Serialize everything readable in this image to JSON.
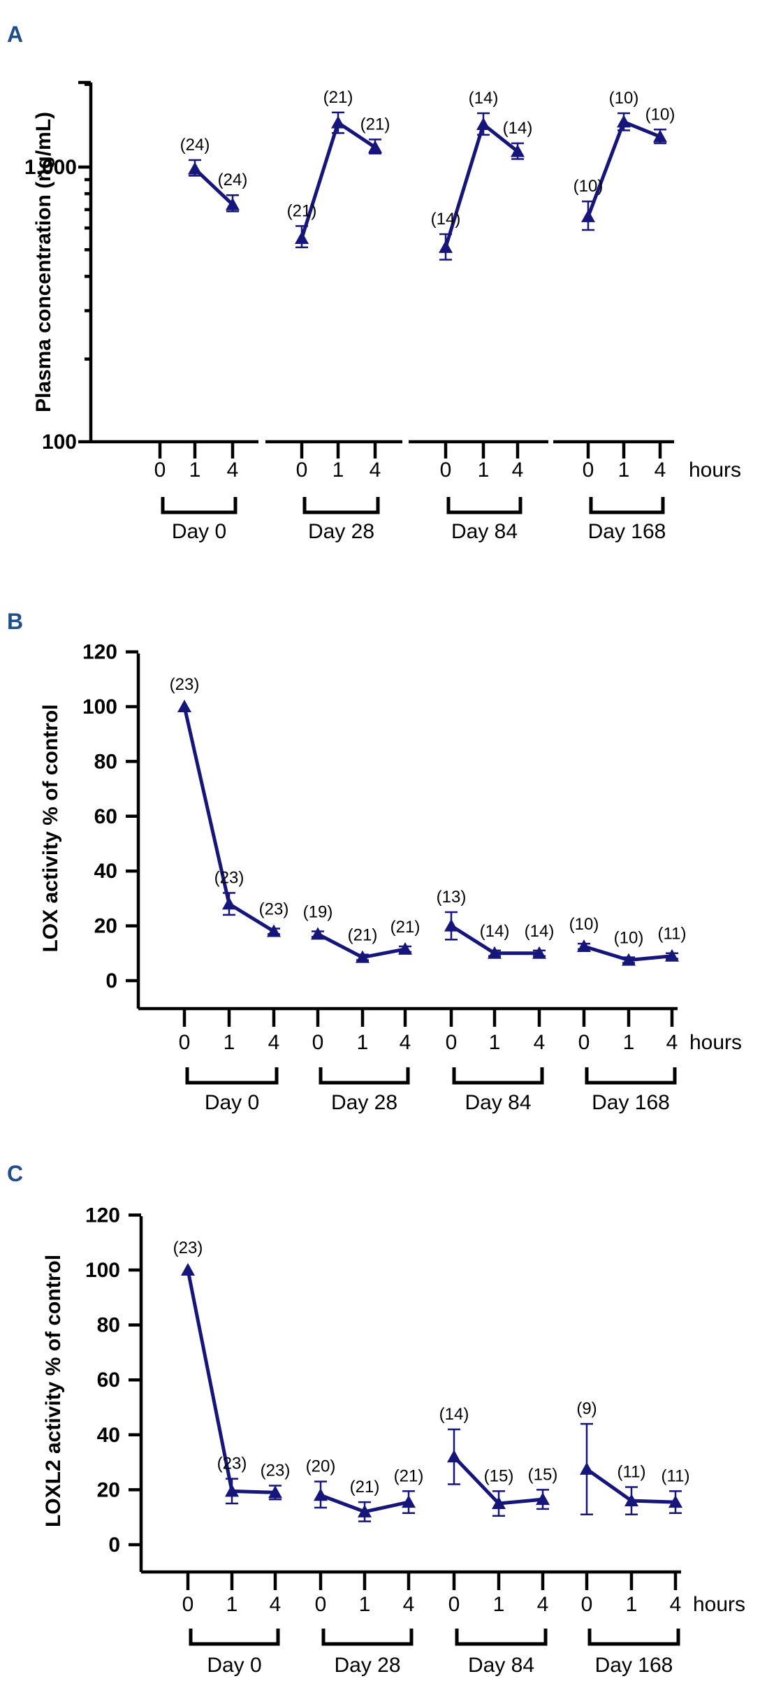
{
  "chart_data": [
    {
      "panel": "A",
      "type": "line",
      "yscale": "log",
      "ylabel": "Plasma concentration (ng/mL)",
      "ylim": [
        100,
        2000
      ],
      "yticks": [
        {
          "v": 100,
          "label": "100"
        },
        {
          "v": 1000,
          "label": "1,000"
        }
      ],
      "x_unit_label": "hours",
      "groups": [
        {
          "day": "Day 0",
          "ticks": [
            "0",
            "1",
            "4"
          ],
          "points": [
            {
              "t": "1",
              "y": 985,
              "err": [
                930,
                1060
              ],
              "n": "(24)"
            },
            {
              "t": "4",
              "y": 730,
              "err": [
                690,
                790
              ],
              "n": "(24)"
            }
          ]
        },
        {
          "day": "Day 28",
          "ticks": [
            "0",
            "1",
            "4"
          ],
          "points": [
            {
              "t": "0",
              "y": 550,
              "err": [
                510,
                610
              ],
              "n": "(21)"
            },
            {
              "t": "1",
              "y": 1450,
              "err": [
                1330,
                1580
              ],
              "n": "(21)"
            },
            {
              "t": "4",
              "y": 1180,
              "err": [
                1120,
                1260
              ],
              "n": "(21)"
            }
          ]
        },
        {
          "day": "Day 84",
          "ticks": [
            "0",
            "1",
            "4"
          ],
          "points": [
            {
              "t": "0",
              "y": 510,
              "err": [
                460,
                570
              ],
              "n": "(14)"
            },
            {
              "t": "1",
              "y": 1430,
              "err": [
                1310,
                1570
              ],
              "n": "(14)"
            },
            {
              "t": "4",
              "y": 1140,
              "err": [
                1070,
                1220
              ],
              "n": "(14)"
            }
          ]
        },
        {
          "day": "Day 168",
          "ticks": [
            "0",
            "1",
            "4"
          ],
          "points": [
            {
              "t": "0",
              "y": 660,
              "err": [
                590,
                750
              ],
              "n": "(10)"
            },
            {
              "t": "1",
              "y": 1460,
              "err": [
                1360,
                1570
              ],
              "n": "(10)"
            },
            {
              "t": "4",
              "y": 1290,
              "err": [
                1220,
                1370
              ],
              "n": "(10)"
            }
          ]
        }
      ]
    },
    {
      "panel": "B",
      "type": "line",
      "yscale": "linear",
      "ylabel": "LOX activity % of control",
      "ylim": [
        -10,
        120
      ],
      "yticks": [
        {
          "v": 0,
          "label": "0"
        },
        {
          "v": 20,
          "label": "20"
        },
        {
          "v": 40,
          "label": "40"
        },
        {
          "v": 60,
          "label": "60"
        },
        {
          "v": 80,
          "label": "80"
        },
        {
          "v": 100,
          "label": "100"
        },
        {
          "v": 120,
          "label": "120"
        }
      ],
      "x_unit_label": "hours",
      "groups": [
        {
          "day": "Day 0",
          "ticks": [
            "0",
            "1",
            "4"
          ],
          "points": [
            {
              "t": "0",
              "y": 100,
              "err": [
                100,
                100
              ],
              "n": "(23)"
            },
            {
              "t": "1",
              "y": 28,
              "err": [
                24,
                32
              ],
              "n": "(23)"
            },
            {
              "t": "4",
              "y": 18,
              "err": [
                17,
                19
              ],
              "n": "(23)"
            }
          ]
        },
        {
          "day": "Day 28",
          "ticks": [
            "0",
            "1",
            "4"
          ],
          "points": [
            {
              "t": "0",
              "y": 17,
              "err": [
                16,
                18
              ],
              "n": "(19)"
            },
            {
              "t": "1",
              "y": 8.5,
              "err": [
                7.5,
                9.5
              ],
              "n": "(21)"
            },
            {
              "t": "4",
              "y": 11.5,
              "err": [
                10.5,
                12.5
              ],
              "n": "(21)"
            }
          ]
        },
        {
          "day": "Day 84",
          "ticks": [
            "0",
            "1",
            "4"
          ],
          "points": [
            {
              "t": "0",
              "y": 20,
              "err": [
                15,
                25
              ],
              "n": "(13)"
            },
            {
              "t": "1",
              "y": 10,
              "err": [
                9,
                11
              ],
              "n": "(14)"
            },
            {
              "t": "4",
              "y": 10,
              "err": [
                9,
                11
              ],
              "n": "(14)"
            }
          ]
        },
        {
          "day": "Day 168",
          "ticks": [
            "0",
            "1",
            "4"
          ],
          "points": [
            {
              "t": "0",
              "y": 12.5,
              "err": [
                11.5,
                13.5
              ],
              "n": "(10)"
            },
            {
              "t": "1",
              "y": 7.5,
              "err": [
                6.5,
                8.5
              ],
              "n": "(10)"
            },
            {
              "t": "4",
              "y": 9,
              "err": [
                8,
                10
              ],
              "n": "(11)"
            }
          ]
        }
      ]
    },
    {
      "panel": "C",
      "type": "line",
      "yscale": "linear",
      "ylabel": "LOXL2 activity % of control",
      "ylim": [
        -10,
        120
      ],
      "yticks": [
        {
          "v": 0,
          "label": "0"
        },
        {
          "v": 20,
          "label": "20"
        },
        {
          "v": 40,
          "label": "40"
        },
        {
          "v": 60,
          "label": "60"
        },
        {
          "v": 80,
          "label": "80"
        },
        {
          "v": 100,
          "label": "100"
        },
        {
          "v": 120,
          "label": "120"
        }
      ],
      "x_unit_label": "hours",
      "groups": [
        {
          "day": "Day 0",
          "ticks": [
            "0",
            "1",
            "4"
          ],
          "points": [
            {
              "t": "0",
              "y": 100,
              "err": [
                100,
                100
              ],
              "n": "(23)"
            },
            {
              "t": "1",
              "y": 19.5,
              "err": [
                15,
                24
              ],
              "n": "(23)"
            },
            {
              "t": "4",
              "y": 19,
              "err": [
                16.5,
                21.5
              ],
              "n": "(23)"
            }
          ]
        },
        {
          "day": "Day 28",
          "ticks": [
            "0",
            "1",
            "4"
          ],
          "points": [
            {
              "t": "0",
              "y": 18,
              "err": [
                13.5,
                23
              ],
              "n": "(20)"
            },
            {
              "t": "1",
              "y": 12,
              "err": [
                8.5,
                15.5
              ],
              "n": "(21)"
            },
            {
              "t": "4",
              "y": 15.5,
              "err": [
                11.5,
                19.5
              ],
              "n": "(21)"
            }
          ]
        },
        {
          "day": "Day 84",
          "ticks": [
            "0",
            "1",
            "4"
          ],
          "points": [
            {
              "t": "0",
              "y": 32,
              "err": [
                22,
                42
              ],
              "n": "(14)"
            },
            {
              "t": "1",
              "y": 15,
              "err": [
                10.5,
                19.5
              ],
              "n": "(15)"
            },
            {
              "t": "4",
              "y": 16.5,
              "err": [
                13,
                20
              ],
              "n": "(15)"
            }
          ]
        },
        {
          "day": "Day 168",
          "ticks": [
            "0",
            "1",
            "4"
          ],
          "points": [
            {
              "t": "0",
              "y": 27.5,
              "err": [
                11,
                44
              ],
              "n": "(9)"
            },
            {
              "t": "1",
              "y": 16,
              "err": [
                11,
                21
              ],
              "n": "(11)"
            },
            {
              "t": "4",
              "y": 15.5,
              "err": [
                11.5,
                19.5
              ],
              "n": "(11)"
            }
          ]
        }
      ]
    }
  ]
}
